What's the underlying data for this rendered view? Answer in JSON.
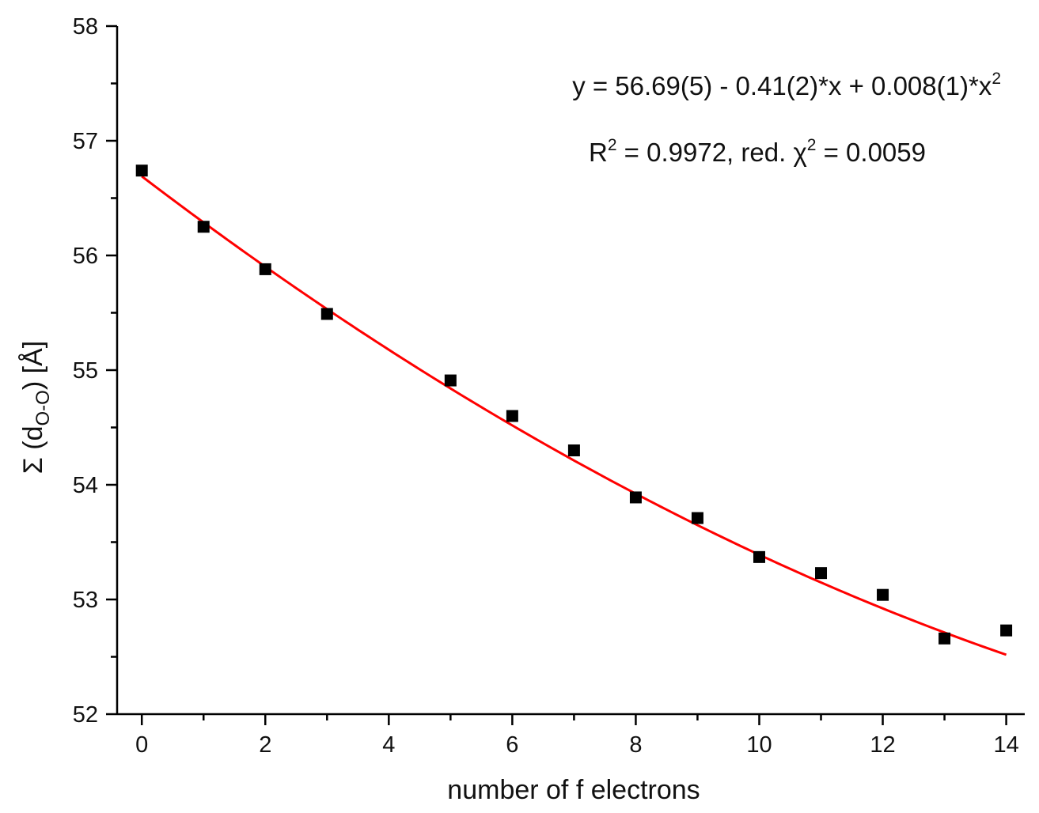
{
  "chart_data": {
    "type": "scatter",
    "title": "",
    "xlabel": "number of f electrons",
    "ylabel": {
      "prefix": "Σ (d",
      "subscript": "O-O",
      "suffix": ") [Å]"
    },
    "xlim": [
      -0.4,
      14.3
    ],
    "ylim": [
      52,
      58
    ],
    "x_ticks": [
      0,
      2,
      4,
      6,
      8,
      10,
      12,
      14
    ],
    "y_ticks": [
      52,
      53,
      54,
      55,
      56,
      57,
      58
    ],
    "grid": false,
    "legend": "none",
    "series": [
      {
        "kind": "points",
        "marker": "square",
        "color": "#000000",
        "points": [
          {
            "x": 0,
            "y": 56.74
          },
          {
            "x": 1,
            "y": 56.25
          },
          {
            "x": 2,
            "y": 55.88
          },
          {
            "x": 3,
            "y": 55.49
          },
          {
            "x": 5,
            "y": 54.91
          },
          {
            "x": 6,
            "y": 54.6
          },
          {
            "x": 7,
            "y": 54.3
          },
          {
            "x": 8,
            "y": 53.89
          },
          {
            "x": 9,
            "y": 53.71
          },
          {
            "x": 10,
            "y": 53.37
          },
          {
            "x": 11,
            "y": 53.23
          },
          {
            "x": 12,
            "y": 53.04
          },
          {
            "x": 13,
            "y": 52.66
          },
          {
            "x": 14,
            "y": 52.73
          }
        ]
      },
      {
        "kind": "fit",
        "color": "#ff0000",
        "fit_coefficients": {
          "a": 56.69,
          "b": -0.41,
          "c": 0.008
        },
        "x_range": [
          0,
          14
        ]
      }
    ],
    "annotations": {
      "equation": {
        "text": "y = 56.69(5) - 0.41(2)*x + 0.008(1)*x",
        "superscript": "2"
      },
      "stats": {
        "r_label": "R",
        "r_sup": "2",
        "r_text": " = 0.9972, red. ",
        "chi_label": "χ",
        "chi_sup": "2",
        "chi_text": " = 0.0059"
      }
    }
  }
}
